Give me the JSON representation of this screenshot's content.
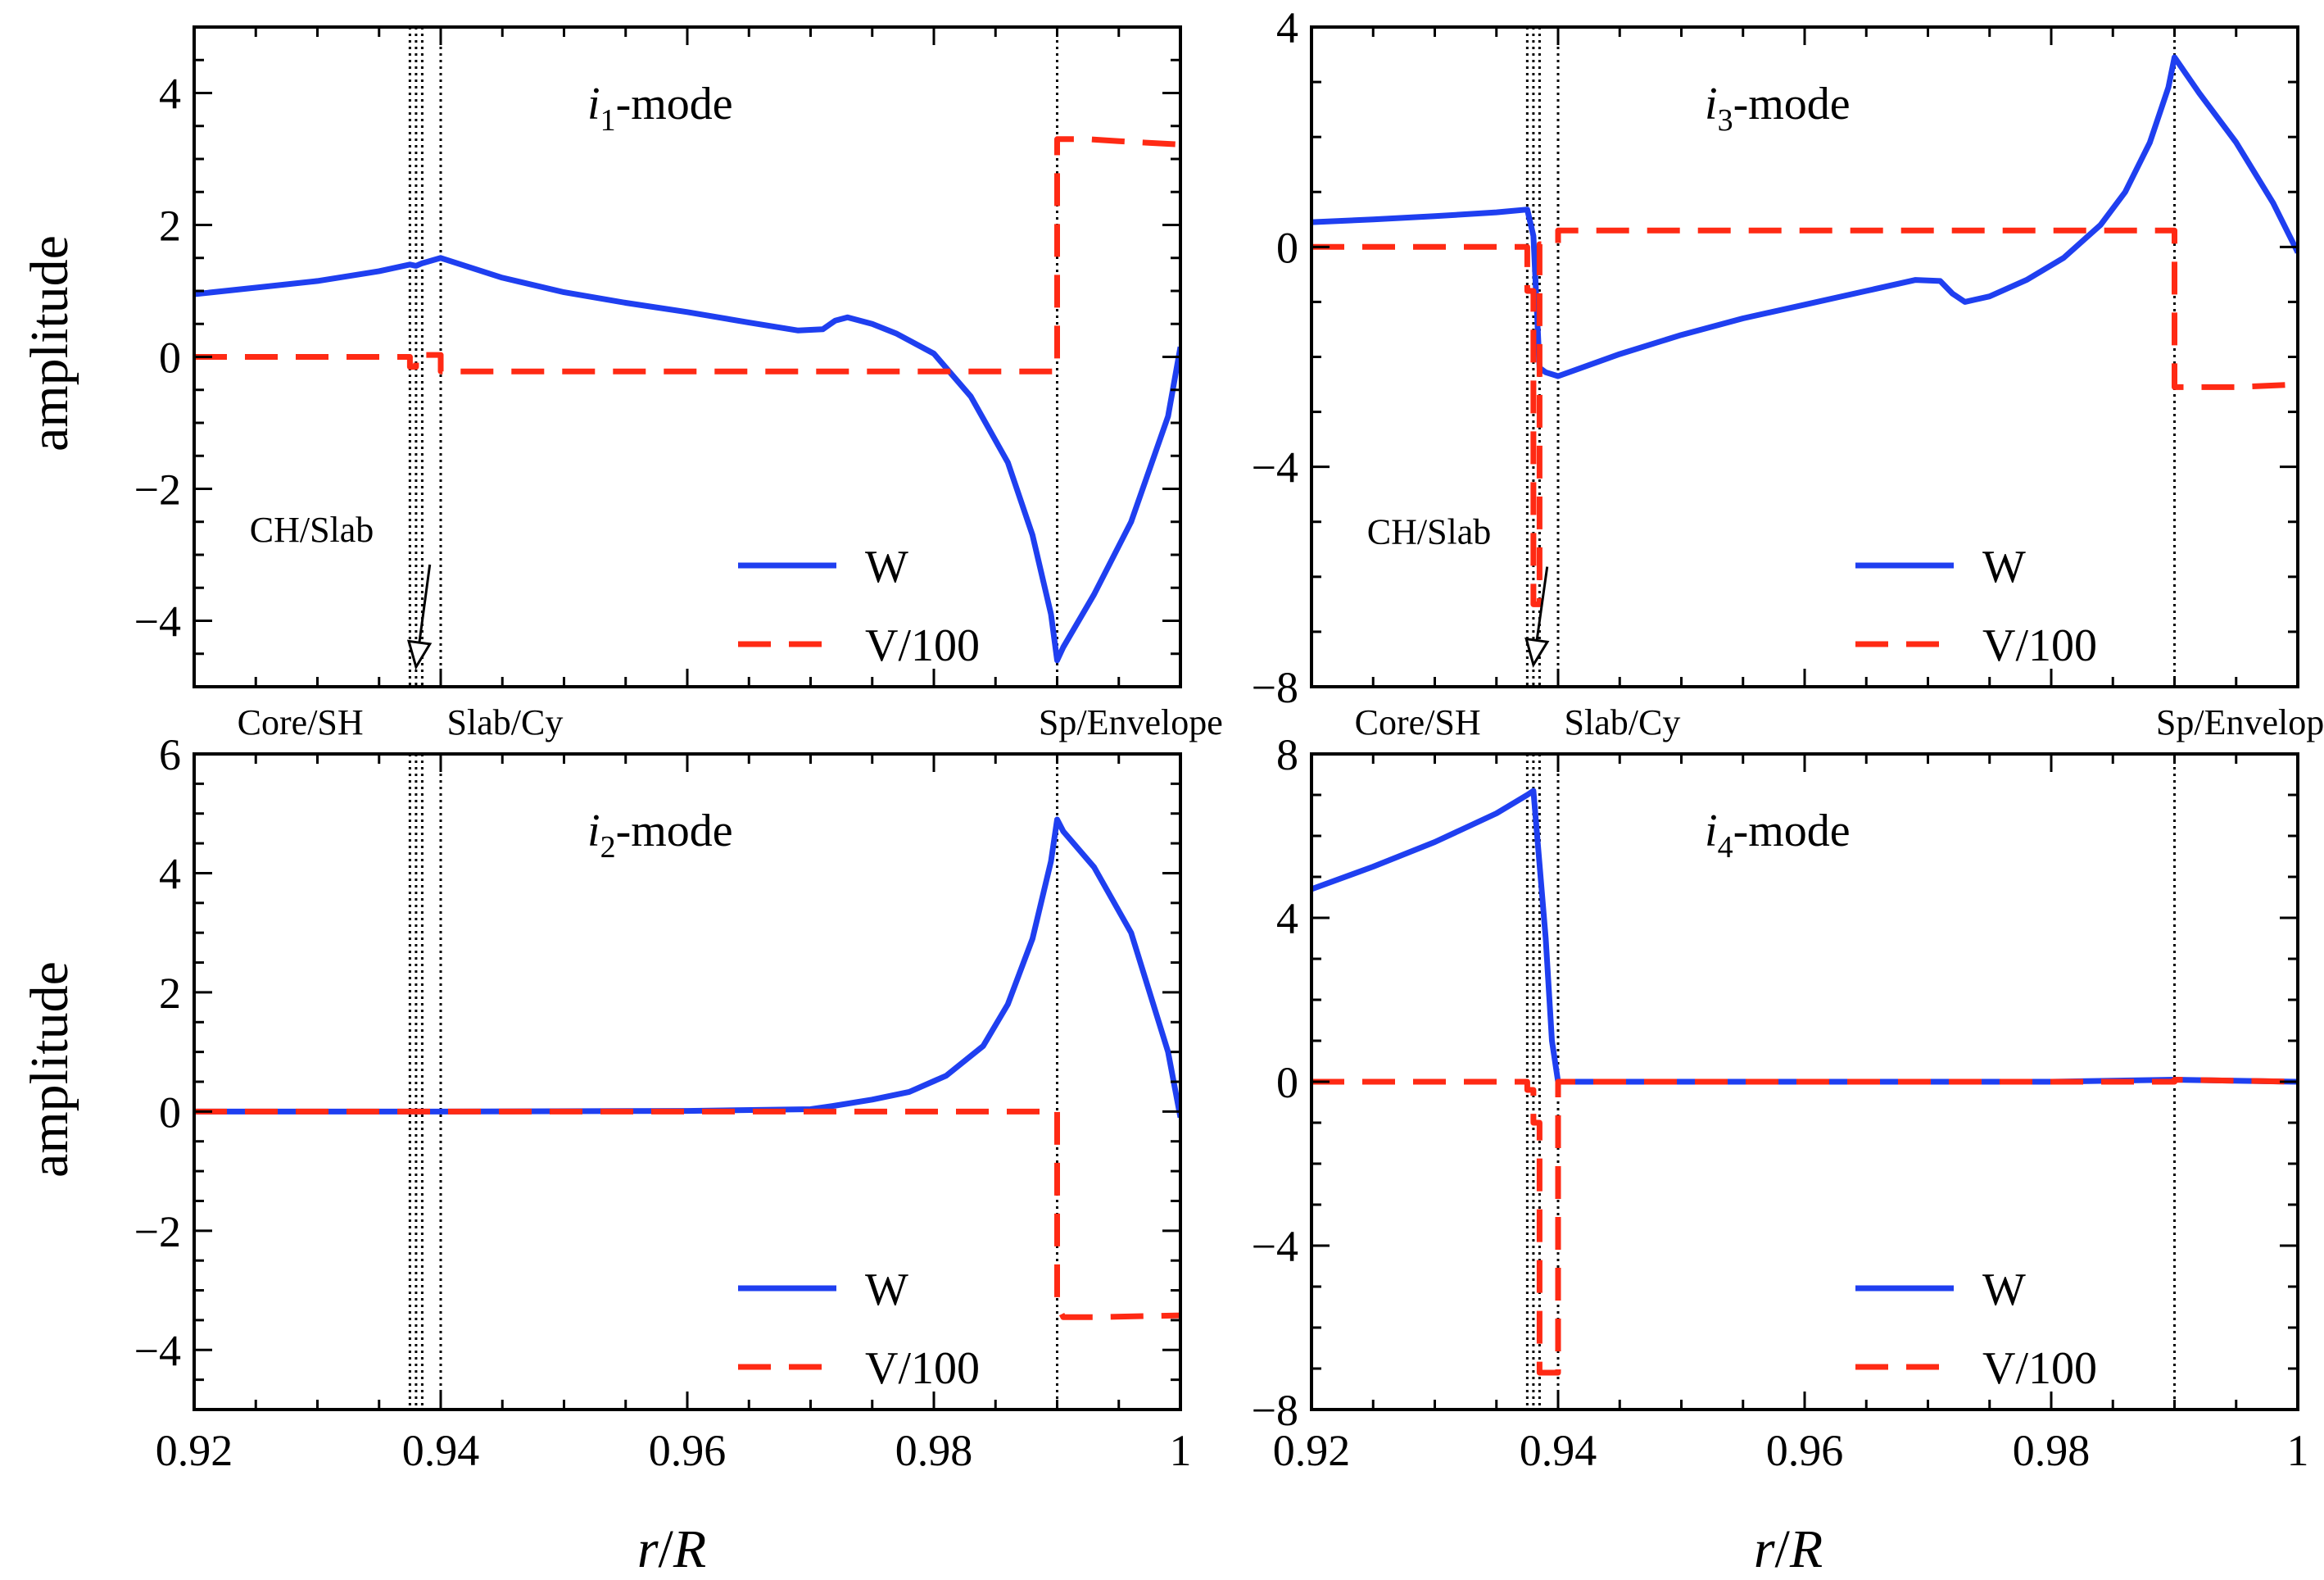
{
  "figure": {
    "xlabel_italic_1": "r",
    "xlabel_sep": "/",
    "xlabel_italic_2": "R",
    "ylabel": "amplitude"
  },
  "colors": {
    "W": "#1f3ff0",
    "V": "#ff2a14",
    "frame": "#000000",
    "vline": "#000000"
  },
  "chart_data": [
    {
      "type": "line",
      "title_prefix": "i",
      "title_subscript": "1",
      "title_suffix": "-mode",
      "xlim": [
        0.92,
        1.0
      ],
      "ylim": [
        -5,
        5
      ],
      "xticks": [
        0.92,
        0.94,
        0.96,
        0.98,
        1.0
      ],
      "xtick_labels": [
        "0.92",
        "0.94",
        "0.96",
        "0.98",
        "1"
      ],
      "show_xtick_labels": false,
      "yticks": [
        -4,
        -2,
        0,
        2,
        4
      ],
      "ytick_labels": [
        "−4",
        "−2",
        "0",
        "2",
        "4"
      ],
      "show_ylabel": true,
      "show_xlabel": false,
      "vlines": [
        0.9375,
        0.938,
        0.9385,
        0.94,
        0.99
      ],
      "region_labels": [
        {
          "text": "Core/SH",
          "x": 0.9235
        },
        {
          "text": "Slab/Cy",
          "x": 0.9405
        },
        {
          "text": "Sp/Envelope",
          "x": 0.9885
        }
      ],
      "annotation": {
        "text": "CH/Slab",
        "text_x": 0.9245,
        "text_y": -2.8,
        "point_x": 0.938,
        "point_y": -4.7
      },
      "legend_position": "lower-right",
      "legend": [
        "W",
        "V/100"
      ],
      "series": [
        {
          "name": "W",
          "style": "solid",
          "x": [
            0.92,
            0.925,
            0.93,
            0.935,
            0.9375,
            0.938,
            0.9385,
            0.94,
            0.945,
            0.95,
            0.955,
            0.96,
            0.965,
            0.969,
            0.971,
            0.972,
            0.973,
            0.975,
            0.977,
            0.98,
            0.983,
            0.986,
            0.988,
            0.9895,
            0.99,
            0.9905,
            0.993,
            0.996,
            0.999,
            1.0
          ],
          "y": [
            0.95,
            1.05,
            1.15,
            1.3,
            1.4,
            1.38,
            1.42,
            1.5,
            1.2,
            0.98,
            0.82,
            0.68,
            0.52,
            0.4,
            0.42,
            0.55,
            0.6,
            0.5,
            0.35,
            0.05,
            -0.6,
            -1.6,
            -2.7,
            -3.9,
            -4.6,
            -4.4,
            -3.6,
            -2.5,
            -0.9,
            0.15
          ]
        },
        {
          "name": "V/100",
          "style": "dashed",
          "x": [
            0.92,
            0.9375,
            0.9375,
            0.938,
            0.938,
            0.94,
            0.94,
            0.99,
            0.99,
            0.9925,
            0.995,
            1.0
          ],
          "y": [
            0.0,
            0.0,
            -0.15,
            -0.15,
            0.03,
            0.03,
            -0.22,
            -0.22,
            3.3,
            3.3,
            3.27,
            3.22
          ]
        }
      ]
    },
    {
      "type": "line",
      "title_prefix": "i",
      "title_subscript": "3",
      "title_suffix": "-mode",
      "xlim": [
        0.92,
        1.0
      ],
      "ylim": [
        -8,
        4
      ],
      "xticks": [
        0.92,
        0.94,
        0.96,
        0.98,
        1.0
      ],
      "xtick_labels": [
        "0.92",
        "0.94",
        "0.96",
        "0.98",
        "1"
      ],
      "show_xtick_labels": false,
      "yticks": [
        -8,
        -4,
        0,
        4
      ],
      "ytick_labels": [
        "−8",
        "−4",
        "0",
        "4"
      ],
      "show_ylabel": false,
      "show_xlabel": false,
      "vlines": [
        0.9375,
        0.938,
        0.9385,
        0.94,
        0.99
      ],
      "region_labels": [
        {
          "text": "Core/SH",
          "x": 0.9235
        },
        {
          "text": "Slab/Cy",
          "x": 0.9405
        },
        {
          "text": "Sp/Envelope",
          "x": 0.9885
        }
      ],
      "annotation": {
        "text": "CH/Slab",
        "text_x": 0.9245,
        "text_y": -5.4,
        "point_x": 0.938,
        "point_y": -7.6
      },
      "legend_position": "lower-right",
      "legend": [
        "W",
        "V/100"
      ],
      "series": [
        {
          "name": "W",
          "style": "solid",
          "x": [
            0.92,
            0.925,
            0.93,
            0.935,
            0.9375,
            0.938,
            0.9385,
            0.939,
            0.94,
            0.945,
            0.95,
            0.955,
            0.96,
            0.965,
            0.969,
            0.971,
            0.972,
            0.973,
            0.975,
            0.978,
            0.981,
            0.984,
            0.986,
            0.988,
            0.9895,
            0.99,
            0.992,
            0.995,
            0.998,
            1.0
          ],
          "y": [
            0.45,
            0.5,
            0.56,
            0.63,
            0.68,
            0.2,
            -2.2,
            -2.28,
            -2.35,
            -1.95,
            -1.6,
            -1.3,
            -1.05,
            -0.8,
            -0.6,
            -0.62,
            -0.85,
            -1.0,
            -0.9,
            -0.6,
            -0.2,
            0.4,
            1.0,
            1.9,
            2.9,
            3.45,
            2.8,
            1.9,
            0.8,
            -0.1
          ]
        },
        {
          "name": "V/100",
          "style": "dashed",
          "x": [
            0.92,
            0.9375,
            0.9375,
            0.938,
            0.938,
            0.9385,
            0.9385,
            0.94,
            0.94,
            0.99,
            0.99,
            0.995,
            1.0
          ],
          "y": [
            0.0,
            0.0,
            -0.8,
            -0.8,
            -6.5,
            -6.5,
            0.05,
            0.05,
            0.3,
            0.3,
            -2.55,
            -2.55,
            -2.5
          ]
        }
      ]
    },
    {
      "type": "line",
      "title_prefix": "i",
      "title_subscript": "2",
      "title_suffix": "-mode",
      "xlim": [
        0.92,
        1.0
      ],
      "ylim": [
        -5,
        6
      ],
      "xticks": [
        0.92,
        0.94,
        0.96,
        0.98,
        1.0
      ],
      "xtick_labels": [
        "0.92",
        "0.94",
        "0.96",
        "0.98",
        "1"
      ],
      "show_xtick_labels": true,
      "yticks": [
        -4,
        -2,
        0,
        2,
        4,
        6
      ],
      "ytick_labels": [
        "−4",
        "−2",
        "0",
        "2",
        "4",
        "6"
      ],
      "show_ylabel": true,
      "show_xlabel": true,
      "vlines": [
        0.9375,
        0.938,
        0.9385,
        0.94,
        0.99
      ],
      "region_labels": [],
      "annotation": null,
      "legend_position": "lower-right",
      "legend": [
        "W",
        "V/100"
      ],
      "series": [
        {
          "name": "W",
          "style": "solid",
          "x": [
            0.92,
            0.94,
            0.96,
            0.97,
            0.972,
            0.975,
            0.978,
            0.981,
            0.984,
            0.986,
            0.988,
            0.9895,
            0.99,
            0.9905,
            0.993,
            0.996,
            0.999,
            1.0
          ],
          "y": [
            0.0,
            0.0,
            0.01,
            0.04,
            0.1,
            0.2,
            0.33,
            0.6,
            1.1,
            1.8,
            2.9,
            4.2,
            4.9,
            4.7,
            4.1,
            3.0,
            1.0,
            -0.1
          ]
        },
        {
          "name": "V/100",
          "style": "dashed",
          "x": [
            0.92,
            0.99,
            0.99,
            0.9905,
            0.993,
            1.0
          ],
          "y": [
            0.0,
            0.0,
            -3.25,
            -3.45,
            -3.45,
            -3.42
          ]
        }
      ]
    },
    {
      "type": "line",
      "title_prefix": "i",
      "title_subscript": "4",
      "title_suffix": "-mode",
      "xlim": [
        0.92,
        1.0
      ],
      "ylim": [
        -8,
        8
      ],
      "xticks": [
        0.92,
        0.94,
        0.96,
        0.98,
        1.0
      ],
      "xtick_labels": [
        "0.92",
        "0.94",
        "0.96",
        "0.98",
        "1"
      ],
      "show_xtick_labels": true,
      "yticks": [
        -8,
        -4,
        0,
        4,
        8
      ],
      "ytick_labels": [
        "−8",
        "−4",
        "0",
        "4",
        "8"
      ],
      "show_ylabel": false,
      "show_xlabel": true,
      "vlines": [
        0.9375,
        0.938,
        0.9385,
        0.94,
        0.99
      ],
      "region_labels": [],
      "annotation": null,
      "legend_position": "lower-right",
      "legend": [
        "W",
        "V/100"
      ],
      "series": [
        {
          "name": "W",
          "style": "solid",
          "x": [
            0.92,
            0.925,
            0.93,
            0.935,
            0.9375,
            0.938,
            0.939,
            0.9395,
            0.94,
            0.96,
            0.98,
            0.99,
            1.0
          ],
          "y": [
            4.7,
            5.25,
            5.85,
            6.55,
            7.0,
            7.1,
            3.5,
            1.0,
            0.0,
            0.0,
            0.0,
            0.05,
            0.0
          ]
        },
        {
          "name": "V/100",
          "style": "dashed",
          "x": [
            0.92,
            0.9375,
            0.9375,
            0.938,
            0.938,
            0.9385,
            0.9385,
            0.94,
            0.94,
            0.99,
            0.99,
            1.0
          ],
          "y": [
            0.0,
            0.0,
            -0.2,
            -0.2,
            -1.0,
            -1.0,
            -7.1,
            -7.1,
            0.0,
            0.0,
            0.05,
            0.0
          ]
        }
      ]
    }
  ]
}
